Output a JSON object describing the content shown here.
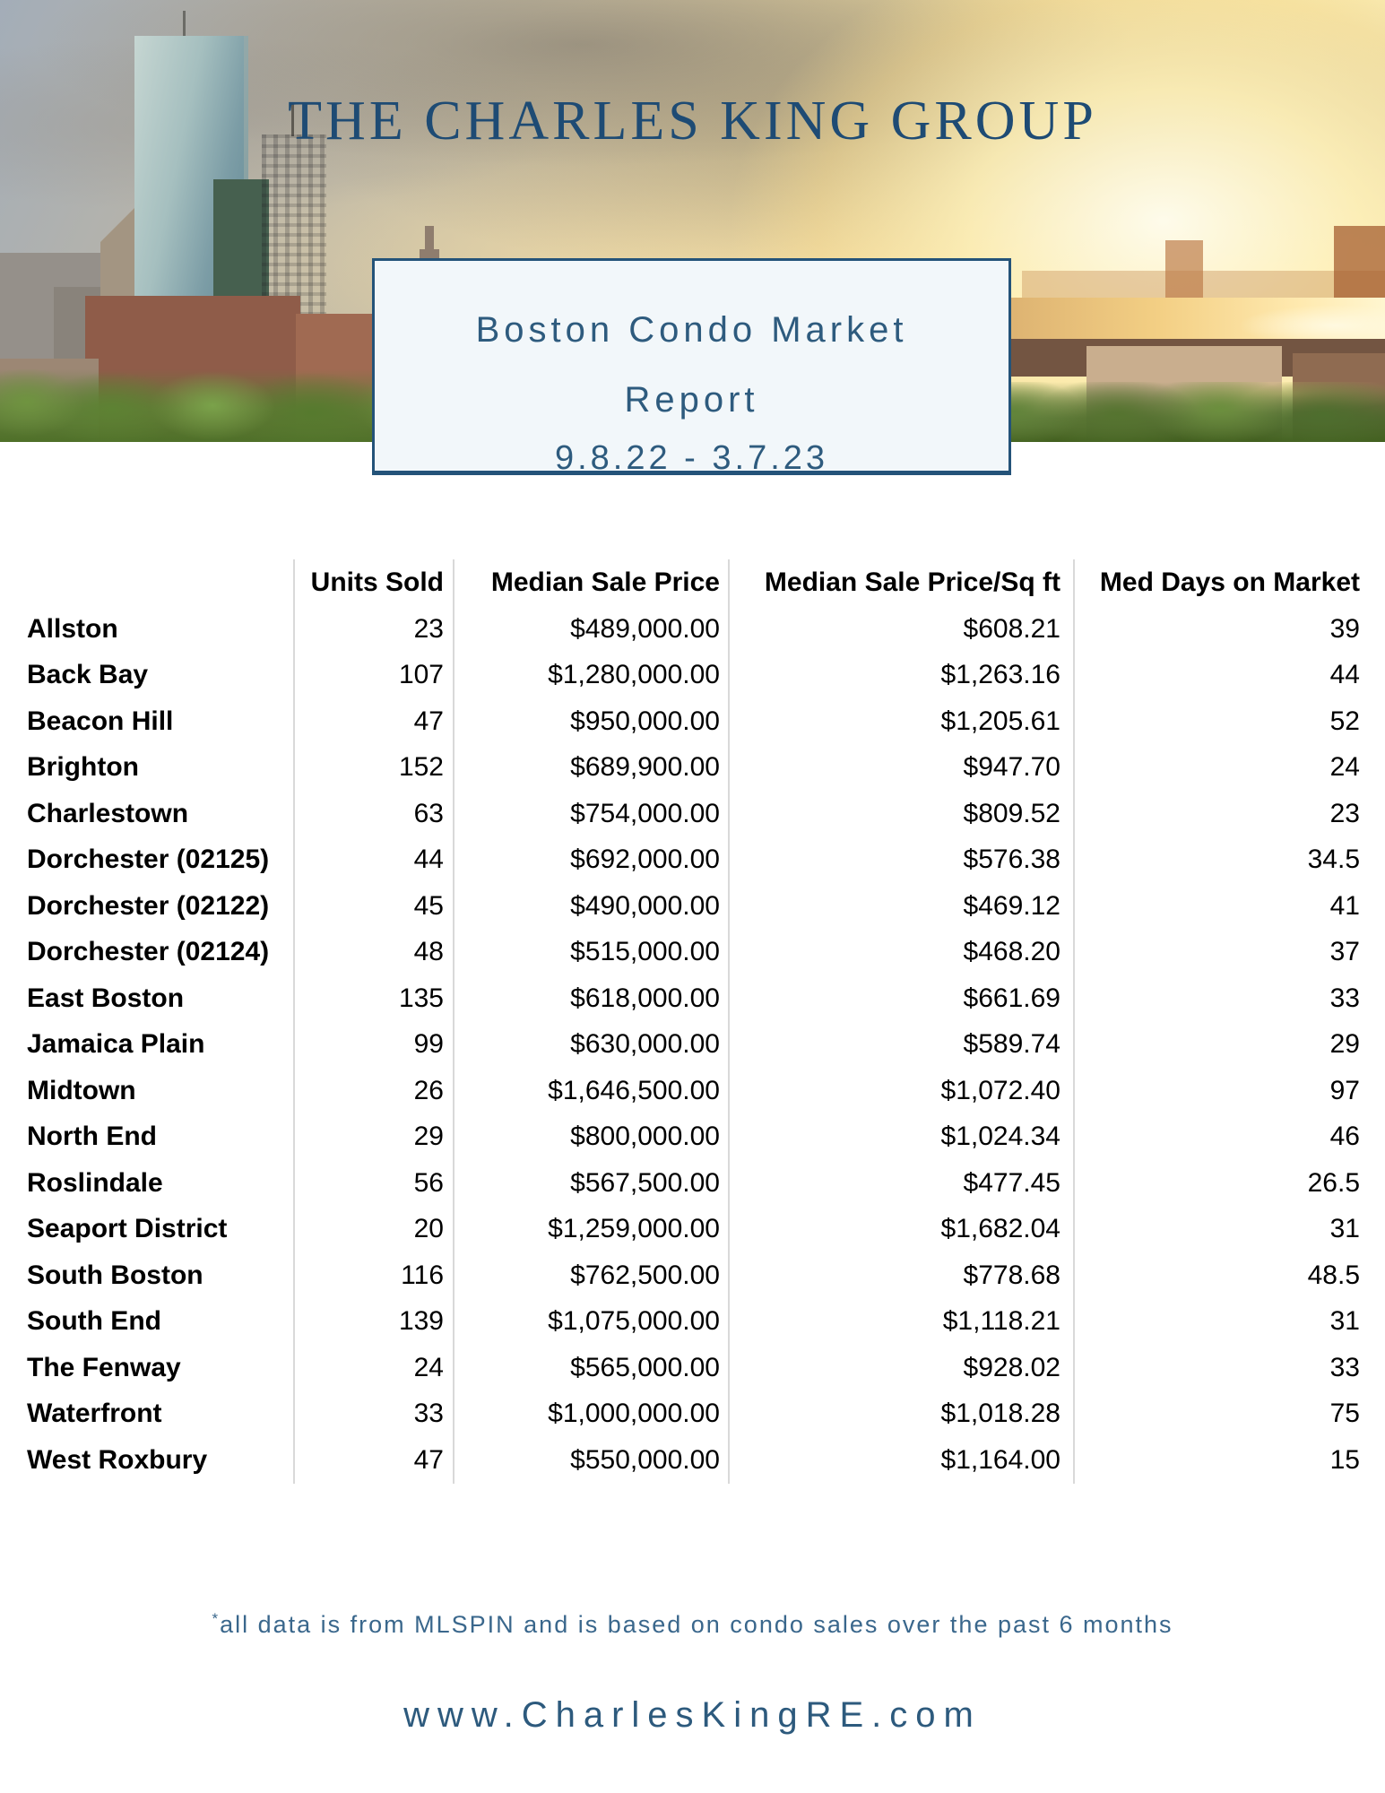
{
  "brand": {
    "title": "THE CHARLES KING GROUP"
  },
  "report_box": {
    "title_line1": "Boston Condo Market",
    "title_line2": "Report",
    "date_range": "9.8.22 - 3.7.23"
  },
  "table": {
    "columns": [
      "Units Sold",
      "Median Sale Price",
      "Median Sale Price/Sq ft",
      "Med Days on Market"
    ],
    "rows": [
      {
        "label": "Allston",
        "units": "23",
        "price": "$489,000.00",
        "ppsf": "$608.21",
        "days": "39"
      },
      {
        "label": "Back Bay",
        "units": "107",
        "price": "$1,280,000.00",
        "ppsf": "$1,263.16",
        "days": "44"
      },
      {
        "label": "Beacon Hill",
        "units": "47",
        "price": "$950,000.00",
        "ppsf": "$1,205.61",
        "days": "52"
      },
      {
        "label": "Brighton",
        "units": "152",
        "price": "$689,900.00",
        "ppsf": "$947.70",
        "days": "24"
      },
      {
        "label": "Charlestown",
        "units": "63",
        "price": "$754,000.00",
        "ppsf": "$809.52",
        "days": "23"
      },
      {
        "label": "Dorchester (02125)",
        "units": "44",
        "price": "$692,000.00",
        "ppsf": "$576.38",
        "days": "34.5"
      },
      {
        "label": "Dorchester (02122)",
        "units": "45",
        "price": "$490,000.00",
        "ppsf": "$469.12",
        "days": "41"
      },
      {
        "label": "Dorchester (02124)",
        "units": "48",
        "price": "$515,000.00",
        "ppsf": "$468.20",
        "days": "37"
      },
      {
        "label": "East Boston",
        "units": "135",
        "price": "$618,000.00",
        "ppsf": "$661.69",
        "days": "33"
      },
      {
        "label": "Jamaica Plain",
        "units": "99",
        "price": "$630,000.00",
        "ppsf": "$589.74",
        "days": "29"
      },
      {
        "label": "Midtown",
        "units": "26",
        "price": "$1,646,500.00",
        "ppsf": "$1,072.40",
        "days": "97"
      },
      {
        "label": "North End",
        "units": "29",
        "price": "$800,000.00",
        "ppsf": "$1,024.34",
        "days": "46"
      },
      {
        "label": "Roslindale",
        "units": "56",
        "price": "$567,500.00",
        "ppsf": "$477.45",
        "days": "26.5"
      },
      {
        "label": "Seaport District",
        "units": "20",
        "price": "$1,259,000.00",
        "ppsf": "$1,682.04",
        "days": "31"
      },
      {
        "label": "South Boston",
        "units": "116",
        "price": "$762,500.00",
        "ppsf": "$778.68",
        "days": "48.5"
      },
      {
        "label": "South End",
        "units": "139",
        "price": "$1,075,000.00",
        "ppsf": "$1,118.21",
        "days": "31"
      },
      {
        "label": "The Fenway",
        "units": "24",
        "price": "$565,000.00",
        "ppsf": "$928.02",
        "days": "33"
      },
      {
        "label": "Waterfront",
        "units": "33",
        "price": "$1,000,000.00",
        "ppsf": "$1,018.28",
        "days": "75"
      },
      {
        "label": "West Roxbury",
        "units": "47",
        "price": "$550,000.00",
        "ppsf": "$1,164.00",
        "days": "15"
      }
    ]
  },
  "footer": {
    "footnote_mark": "*",
    "footnote": "all data is from MLSPIN and is based on condo sales over the past 6 months",
    "website": "www.CharlesKingRE.com"
  },
  "colors": {
    "title_navy": "#1e4b74",
    "box_border": "#245379",
    "box_background": "#f2f7fa",
    "slate_text": "#2e5b7e",
    "table_separator": "#d9d9d9"
  }
}
